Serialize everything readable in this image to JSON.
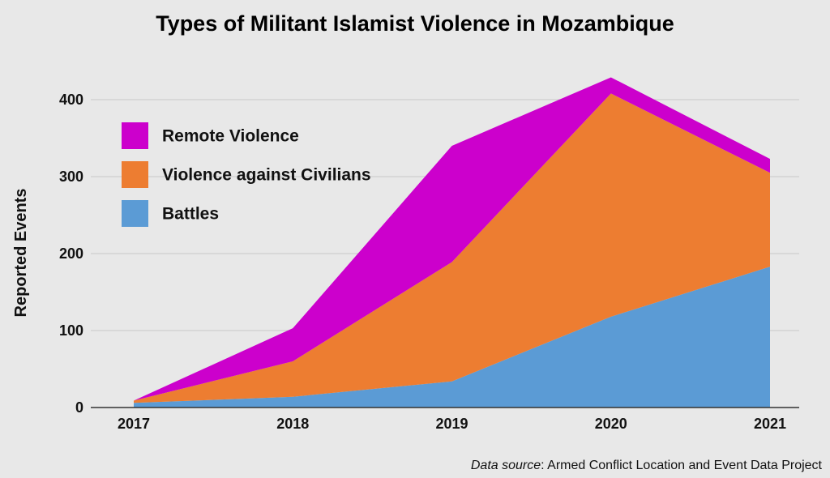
{
  "chart_data": {
    "type": "area",
    "stacked": true,
    "title": "Types of Militant Islamist Violence in Mozambique",
    "xlabel": "",
    "ylabel": "Reported Events",
    "categories": [
      "2017",
      "2018",
      "2019",
      "2020",
      "2021"
    ],
    "ylim": [
      0,
      430
    ],
    "yticks": [
      0,
      100,
      200,
      300,
      400
    ],
    "grid": true,
    "legend_position": "top-left",
    "series": [
      {
        "name": "Battles",
        "color": "#5b9bd5",
        "values": [
          6,
          14,
          34,
          118,
          183
        ]
      },
      {
        "name": "Violence against Civilians",
        "color": "#ed7d31",
        "values": [
          3,
          46,
          155,
          290,
          122
        ]
      },
      {
        "name": "Remote Violence",
        "color": "#cc00cc",
        "values": [
          0,
          43,
          151,
          21,
          18
        ]
      }
    ],
    "legend_order": [
      "Remote Violence",
      "Violence against Civilians",
      "Battles"
    ],
    "source_label": "Data source",
    "source_text": ": Armed Conflict Location and Event Data Project"
  }
}
